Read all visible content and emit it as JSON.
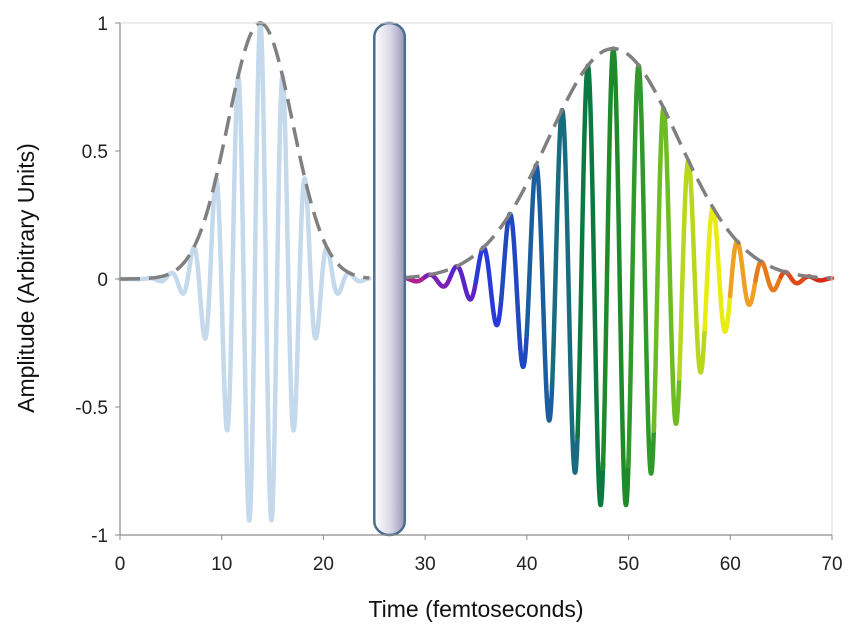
{
  "chart_data": {
    "type": "line",
    "title": "",
    "xlabel": "Time (femtoseconds)",
    "ylabel": "Amplitude (Arbitrary Units)",
    "xlim": [
      0,
      70
    ],
    "ylim": [
      -1,
      1
    ],
    "xticks": [
      "0",
      "10",
      "20",
      "30",
      "40",
      "50",
      "60",
      "70"
    ],
    "yticks": [
      "1",
      "0.5",
      "0",
      "-0.5",
      "-1"
    ],
    "grid": false,
    "legend": "none",
    "series": [
      {
        "role": "input pulse",
        "color": "#c5d9ec",
        "envelope": {
          "center": 13.8,
          "peak": 1.0,
          "sigma": 3.2
        },
        "oscillation_period": 2.2
      },
      {
        "role": "input pulse envelope",
        "color": "#808080",
        "style": "dashed",
        "x_range": [
          0,
          24.5
        ]
      },
      {
        "role": "output chirped pulse",
        "colors": [
          "#b02090",
          "#7a1fb8",
          "#5a24c8",
          "#2a3ad8",
          "#2048c0",
          "#1a5ea0",
          "#186c80",
          "#0c7a40",
          "#1f8a2a",
          "#2f9a2a",
          "#6cbc22",
          "#b8d81e",
          "#e8ec10",
          "#f0a020",
          "#e87a1a",
          "#e04a18",
          "#d82a18"
        ],
        "envelope": {
          "center": 48.5,
          "peak": 0.9,
          "sigma": 6.4
        },
        "oscillation_period_start": 2.7,
        "oscillation_period_end": 2.3
      },
      {
        "role": "output pulse envelope",
        "color": "#808080",
        "style": "dashed",
        "x_range": [
          27.5,
          70
        ]
      }
    ],
    "element": {
      "role": "dispersive medium",
      "x_range": [
        25,
        28
      ],
      "fill_start": "#ffffff",
      "fill_end": "#9a96b8",
      "stroke": "#4c6e8f"
    }
  }
}
